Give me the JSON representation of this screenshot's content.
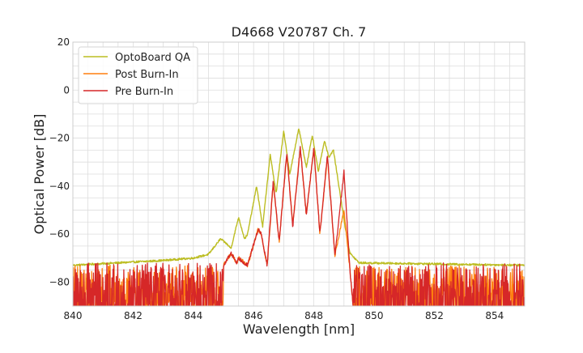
{
  "chart_data": {
    "type": "line",
    "title": "D4668 V20787 Ch. 7",
    "xlabel": "Wavelength [nm]",
    "ylabel": "Optical Power [dB]",
    "xlim": [
      840,
      855
    ],
    "ylim": [
      -90,
      20
    ],
    "xticks": [
      840,
      842,
      844,
      846,
      848,
      850,
      852,
      854
    ],
    "yticks": [
      20,
      0,
      -20,
      -40,
      -60,
      -80
    ],
    "xtick_labels": [
      "840",
      "842",
      "844",
      "846",
      "848",
      "850",
      "852",
      "854"
    ],
    "ytick_labels": [
      "20",
      "0",
      "−20",
      "−40",
      "−60",
      "−80"
    ],
    "grid": true,
    "legend_position": "top-left",
    "legend": [
      "OptoBoard QA",
      "Post Burn-In",
      "Pre Burn-In"
    ],
    "series": [
      {
        "name": "OptoBoard QA",
        "color": "#bcbd22",
        "noise_floor": -73,
        "noise_range": [
          -77,
          -71
        ],
        "points": [
          [
            840.0,
            -73
          ],
          [
            843.0,
            -71
          ],
          [
            844.0,
            -70
          ],
          [
            844.5,
            -68.5
          ],
          [
            844.9,
            -62
          ],
          [
            845.1,
            -64
          ],
          [
            845.25,
            -66
          ],
          [
            845.5,
            -53
          ],
          [
            845.7,
            -62
          ],
          [
            845.8,
            -60
          ],
          [
            846.1,
            -40
          ],
          [
            846.3,
            -57
          ],
          [
            846.55,
            -27
          ],
          [
            846.75,
            -43
          ],
          [
            847.0,
            -17
          ],
          [
            847.2,
            -35
          ],
          [
            847.5,
            -16
          ],
          [
            847.75,
            -32
          ],
          [
            847.95,
            -19
          ],
          [
            848.15,
            -34
          ],
          [
            848.35,
            -21
          ],
          [
            848.5,
            -28
          ],
          [
            848.65,
            -25
          ],
          [
            849.05,
            -58
          ],
          [
            849.2,
            -68
          ],
          [
            849.5,
            -72
          ],
          [
            855.0,
            -73
          ]
        ]
      },
      {
        "name": "Post Burn-In",
        "color": "#ff7f0e",
        "noise_floor": -82,
        "noise_range": [
          -90,
          -73
        ],
        "points": [
          [
            845.0,
            -73
          ],
          [
            845.25,
            -68
          ],
          [
            845.45,
            -72
          ],
          [
            845.5,
            -70
          ],
          [
            845.8,
            -73
          ],
          [
            846.15,
            -58
          ],
          [
            846.25,
            -60
          ],
          [
            846.45,
            -73
          ],
          [
            846.65,
            -39
          ],
          [
            846.85,
            -63
          ],
          [
            847.1,
            -27
          ],
          [
            847.3,
            -56
          ],
          [
            847.55,
            -24
          ],
          [
            847.75,
            -52
          ],
          [
            848.0,
            -24
          ],
          [
            848.2,
            -60
          ],
          [
            848.45,
            -28
          ],
          [
            848.7,
            -69
          ],
          [
            849.0,
            -50
          ],
          [
            849.2,
            -75
          ],
          [
            849.3,
            -90
          ]
        ]
      },
      {
        "name": "Pre Burn-In",
        "color": "#d62728",
        "noise_floor": -82,
        "noise_range": [
          -90,
          -72
        ],
        "points": [
          [
            845.0,
            -73
          ],
          [
            845.25,
            -68
          ],
          [
            845.45,
            -72
          ],
          [
            845.5,
            -70
          ],
          [
            845.8,
            -73
          ],
          [
            846.15,
            -58
          ],
          [
            846.25,
            -60
          ],
          [
            846.45,
            -73
          ],
          [
            846.65,
            -38
          ],
          [
            846.85,
            -63
          ],
          [
            847.1,
            -26
          ],
          [
            847.3,
            -57
          ],
          [
            847.55,
            -24
          ],
          [
            847.75,
            -52
          ],
          [
            848.0,
            -24
          ],
          [
            848.2,
            -60
          ],
          [
            848.45,
            -27
          ],
          [
            848.7,
            -69
          ],
          [
            849.0,
            -34
          ],
          [
            849.2,
            -75
          ],
          [
            849.3,
            -90
          ]
        ]
      }
    ]
  }
}
